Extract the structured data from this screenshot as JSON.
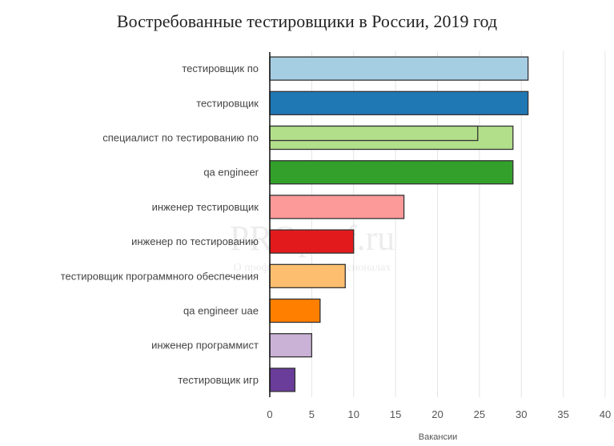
{
  "chart_data": {
    "type": "bar",
    "orientation": "horizontal",
    "title": "Востребованные тестировщики в России, 2019 год",
    "xlabel": "Вакансии",
    "ylabel": "",
    "xlim": [
      0,
      40
    ],
    "xticks": [
      0,
      5,
      10,
      15,
      20,
      25,
      30,
      35,
      40
    ],
    "grid": true,
    "categories": [
      "тестировщик по",
      "тестировщик",
      "специалист по тестированию по",
      "qa engineer",
      "инженер тестировщик",
      "инженер по тестированию",
      "тестировщик программного обеспечения",
      "qa engineer uae",
      "инженер программист",
      "тестировщик игр"
    ],
    "values": [
      30.8,
      30.8,
      29,
      29,
      16,
      10,
      9,
      6,
      5,
      3
    ],
    "overlay_values": [
      null,
      null,
      24.8,
      null,
      null,
      null,
      null,
      null,
      null,
      null
    ],
    "colors": [
      "#a6cee3",
      "#1f78b4",
      "#b2df8a",
      "#33a02c",
      "#fb9a99",
      "#e31a1c",
      "#fdbf6f",
      "#ff7f00",
      "#cab2d6",
      "#6a3d9a"
    ]
  },
  "watermark": {
    "main": "PROprof.ru",
    "sub": "О профессиях и профессионалах"
  }
}
